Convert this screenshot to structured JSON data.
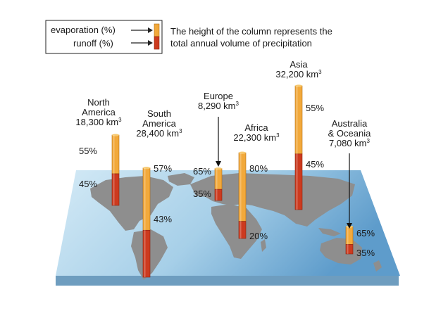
{
  "legend": {
    "evaporation_label": "evaporation (%)",
    "runoff_label": "runoff (%)",
    "note_line1": "The height of the column represents the",
    "note_line2": "total annual volume of precipitation"
  },
  "colors": {
    "evaporation": "#f2a93b",
    "runoff": "#cc3a1f",
    "ocean_light": "#b9dcef",
    "ocean_dark": "#5a99c6",
    "land": "#8c8c8c"
  },
  "chart_data": {
    "type": "bar",
    "categories": [
      "North America",
      "South America",
      "Europe",
      "Africa",
      "Asia",
      "Australia & Oceania"
    ],
    "series": [
      {
        "name": "evaporation (%)",
        "values": [
          55,
          57,
          65,
          80,
          55,
          65
        ]
      },
      {
        "name": "runoff (%)",
        "values": [
          45,
          43,
          35,
          20,
          45,
          35
        ]
      }
    ],
    "precipitation_km3": [
      18300,
      28400,
      8290,
      22300,
      32200,
      7080
    ],
    "regions": [
      {
        "name_lines": [
          "North",
          "America"
        ],
        "volume": "18,300 km",
        "evap_label": "55%",
        "runoff_label": "45%"
      },
      {
        "name_lines": [
          "South",
          "America"
        ],
        "volume": "28,400 km",
        "evap_label": "57%",
        "runoff_label": "43%"
      },
      {
        "name_lines": [
          "Europe"
        ],
        "volume": "8,290 km",
        "evap_label": "65%",
        "runoff_label": "35%"
      },
      {
        "name_lines": [
          "Africa"
        ],
        "volume": "22,300 km",
        "evap_label": "80%",
        "runoff_label": "20%"
      },
      {
        "name_lines": [
          "Asia"
        ],
        "volume": "32,200 km",
        "evap_label": "55%",
        "runoff_label": "45%"
      },
      {
        "name_lines": [
          "Australia",
          "& Oceania"
        ],
        "volume": "7,080 km",
        "evap_label": "65%",
        "runoff_label": "35%"
      }
    ],
    "volume_unit_superscript": "3"
  }
}
